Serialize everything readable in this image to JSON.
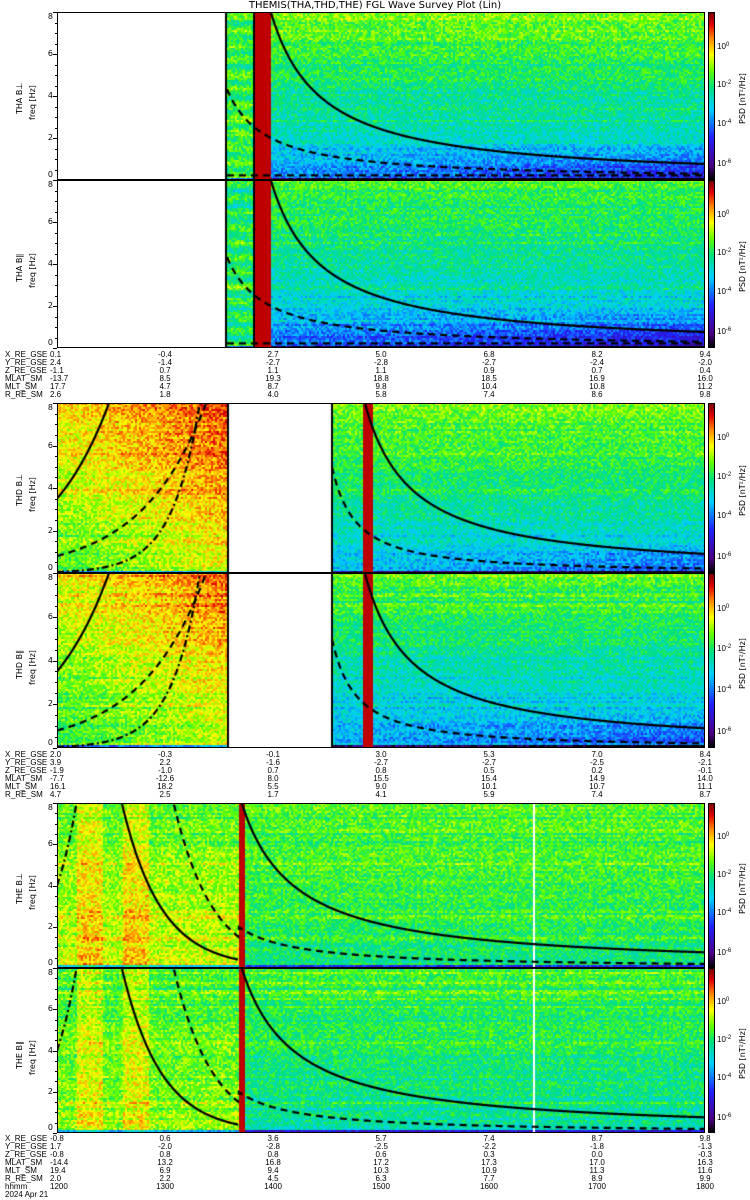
{
  "title": "THEMIS(THA,THD,THE) FGL Wave Survey Plot (Lin)",
  "chart_data": {
    "type": "heatmap",
    "title": "THEMIS(THA,THD,THE) FGL Wave Survey Plot (Lin)",
    "panels": [
      {
        "label": "THA B⊥",
        "ylabel": "freq [Hz]"
      },
      {
        "label": "THA B∥",
        "ylabel": "freq [Hz]"
      },
      {
        "label": "THD B⊥",
        "ylabel": "freq [Hz]"
      },
      {
        "label": "THD B∥",
        "ylabel": "freq [Hz]"
      },
      {
        "label": "THE B⊥",
        "ylabel": "freq [Hz]"
      },
      {
        "label": "THE B∥",
        "ylabel": "freq [Hz]"
      }
    ],
    "yticks": [
      "0",
      "2",
      "4",
      "6",
      "8"
    ],
    "ylim": [
      0,
      8
    ],
    "colorbar": {
      "label": "PSD [nT²/Hz]",
      "ticks": [
        "10^0",
        "10^-2",
        "10^-4",
        "10^-6"
      ]
    },
    "ephemeris": [
      {
        "probe": "THA",
        "rows": [
          {
            "name": "X_RE_GSE",
            "values": [
              "0.1",
              "-0.4",
              "2.7",
              "5.0",
              "6.8",
              "8.2",
              "9.4"
            ]
          },
          {
            "name": "Y_RE_GSE",
            "values": [
              "2.4",
              "-1.4",
              "-2.7",
              "-2.8",
              "-2.7",
              "-2.4",
              "-2.0"
            ]
          },
          {
            "name": "Z_RE_GSE",
            "values": [
              "-1.1",
              "0.7",
              "1.1",
              "1.1",
              "0.9",
              "0.7",
              "0.4"
            ]
          },
          {
            "name": "MLAT_SM",
            "values": [
              "-13.7",
              "8.5",
              "19.3",
              "18.8",
              "18.5",
              "16.9",
              "16.0"
            ]
          },
          {
            "name": "MLT_SM",
            "values": [
              "17.7",
              "4.7",
              "8.7",
              "9.8",
              "10.4",
              "10.8",
              "11.2"
            ]
          },
          {
            "name": "R_RE_SM",
            "values": [
              "2.6",
              "1.8",
              "4.0",
              "5.8",
              "7.4",
              "8.6",
              "9.8"
            ]
          }
        ]
      },
      {
        "probe": "THD",
        "rows": [
          {
            "name": "X_RE_GSE",
            "values": [
              "2.0",
              "-0.3",
              "-0.1",
              "3.0",
              "5.3",
              "7.0",
              "8.4"
            ]
          },
          {
            "name": "Y_RE_GSE",
            "values": [
              "3.9",
              "2.2",
              "-1.6",
              "-2.7",
              "-2.7",
              "-2.5",
              "-2.1"
            ]
          },
          {
            "name": "Z_RE_GSE",
            "values": [
              "-1.9",
              "-1.0",
              "0.7",
              "0.8",
              "0.5",
              "0.2",
              "-0.1"
            ]
          },
          {
            "name": "MLAT_SM",
            "values": [
              "-7.7",
              "-12.6",
              "8.0",
              "15.5",
              "15.4",
              "14.9",
              "14.0"
            ]
          },
          {
            "name": "MLT_SM",
            "values": [
              "16.1",
              "18.2",
              "5.5",
              "9.0",
              "10.1",
              "10.7",
              "11.1"
            ]
          },
          {
            "name": "R_RE_SM",
            "values": [
              "4.7",
              "2.5",
              "1.7",
              "4.1",
              "5.9",
              "7.4",
              "8.7"
            ]
          }
        ]
      },
      {
        "probe": "THE",
        "rows": [
          {
            "name": "X_RE_GSE",
            "values": [
              "-0.8",
              "0.6",
              "3.6",
              "5.7",
              "7.4",
              "8.7",
              "9.8"
            ]
          },
          {
            "name": "Y_RE_GSE",
            "values": [
              "1.7",
              "-2.0",
              "-2.8",
              "-2.5",
              "-2.2",
              "-1.8",
              "-1.3"
            ]
          },
          {
            "name": "Z_RE_GSE",
            "values": [
              "-0.8",
              "0.8",
              "0.8",
              "0.6",
              "0.3",
              "0.0",
              "-0.3"
            ]
          },
          {
            "name": "MLAT_SM",
            "values": [
              "-14.4",
              "13.2",
              "16.8",
              "17.2",
              "17.3",
              "17.0",
              "16.3"
            ]
          },
          {
            "name": "MLT_SM",
            "values": [
              "19.4",
              "6.9",
              "9.4",
              "10.3",
              "10.9",
              "11.3",
              "11.6"
            ]
          },
          {
            "name": "R_RE_SM",
            "values": [
              "2.0",
              "2.2",
              "4.5",
              "6.3",
              "7.7",
              "8.9",
              "9.9"
            ]
          },
          {
            "name": "hhmm",
            "values": [
              "1200",
              "1300",
              "1400",
              "1500",
              "1600",
              "1700",
              "1800"
            ]
          }
        ]
      }
    ],
    "date": "2024 Apr 21"
  }
}
